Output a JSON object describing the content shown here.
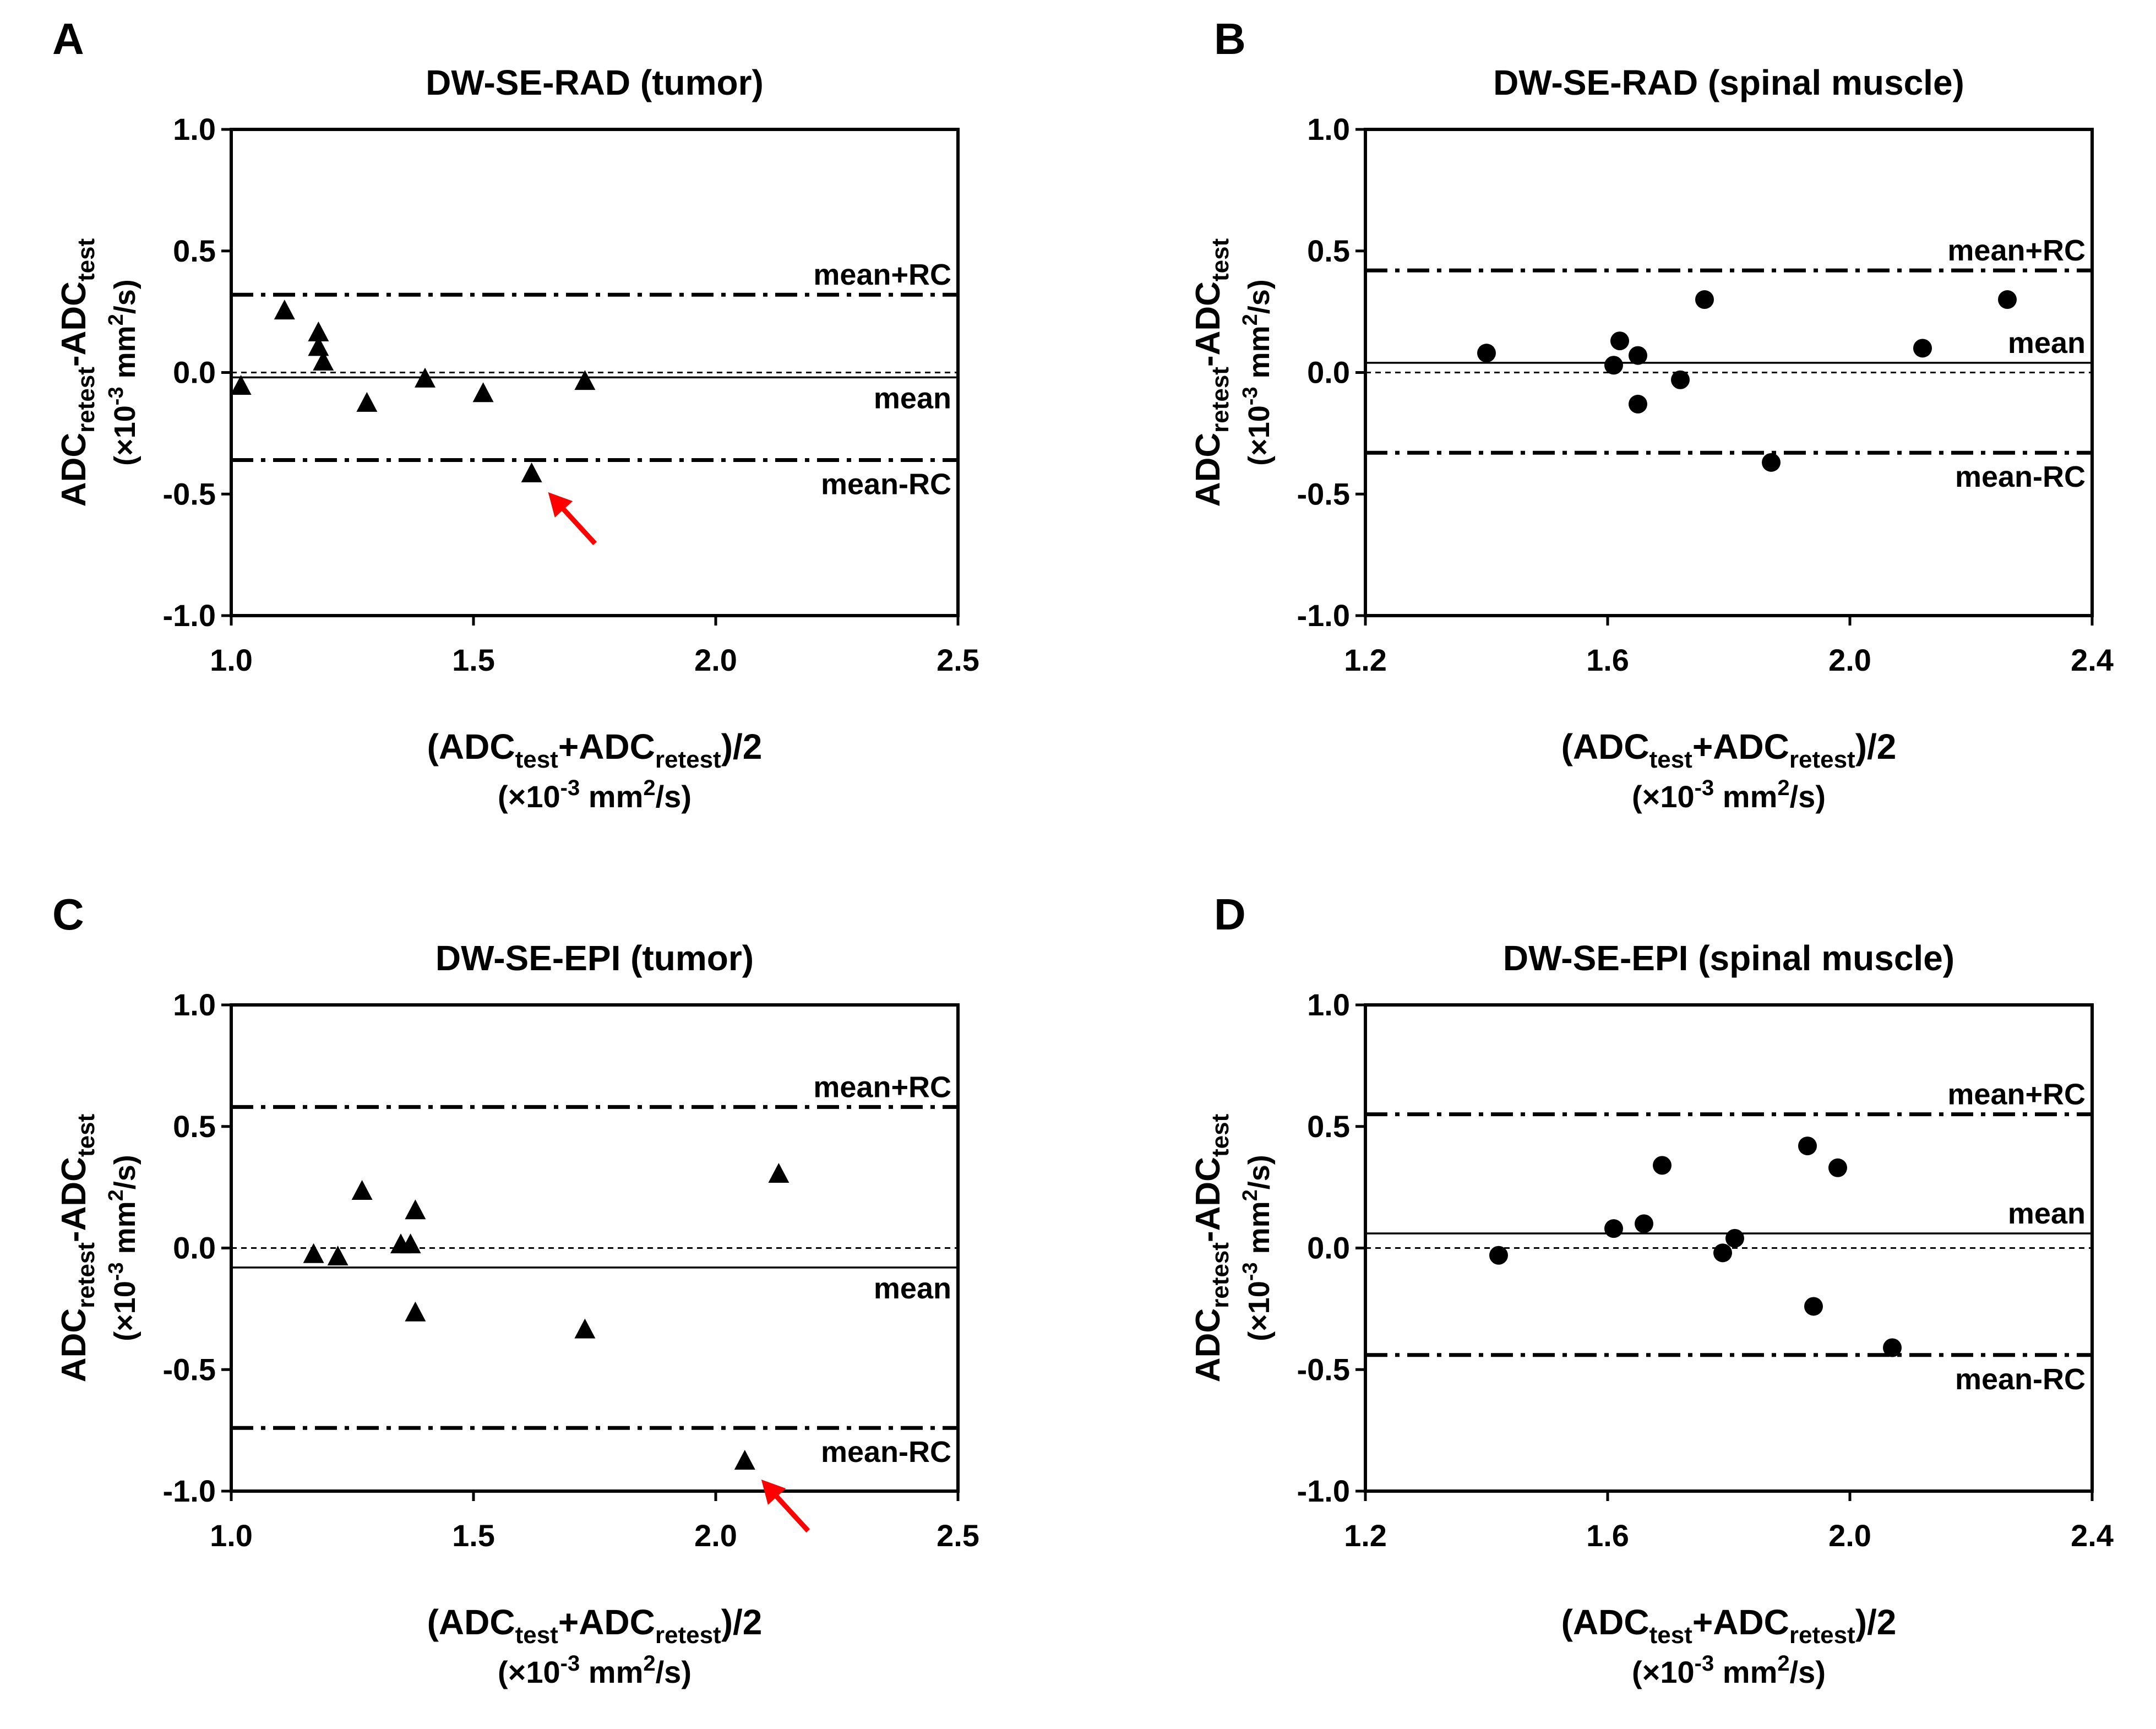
{
  "figure": {
    "background": "#ffffff",
    "text_color": "#000000",
    "arrow_color": "#ff0000"
  },
  "chart_data": [
    {
      "type": "scatter",
      "panel_letter": "A",
      "title": "DW-SE-RAD (tumor)",
      "marker": "triangle",
      "ylabel": {
        "base": "ADC",
        "sub1": "retest",
        "mid": "-ADC",
        "sub2": "test",
        "unit_pre": "(×10",
        "unit_exp": "-3",
        "unit_mid": " mm",
        "unit_exp2": "2",
        "unit_post": "/s)"
      },
      "xlabel": {
        "pre": "(ADC",
        "sub1": "test",
        "mid": "+ADC",
        "sub2": "retest",
        "post": ")/2",
        "unit_pre": "(×10",
        "unit_exp": "-3",
        "unit_mid": " mm",
        "unit_exp2": "2",
        "unit_post": "/s)"
      },
      "xlim": [
        1.0,
        2.5
      ],
      "ylim": [
        -1.0,
        1.0
      ],
      "xticks": [
        "1.0",
        "1.5",
        "2.0",
        "2.5"
      ],
      "yticks": [
        "-1.0",
        "-0.5",
        "0.0",
        "0.5",
        "1.0"
      ],
      "mean": -0.02,
      "upper": 0.32,
      "lower": -0.36,
      "mean_label": "mean",
      "upper_label": "mean+RC",
      "lower_label": "mean-RC",
      "points": [
        {
          "x": 1.02,
          "y": -0.06
        },
        {
          "x": 1.11,
          "y": 0.25
        },
        {
          "x": 1.18,
          "y": 0.16
        },
        {
          "x": 1.18,
          "y": 0.1
        },
        {
          "x": 1.19,
          "y": 0.04
        },
        {
          "x": 1.28,
          "y": -0.13
        },
        {
          "x": 1.4,
          "y": -0.03
        },
        {
          "x": 1.52,
          "y": -0.09
        },
        {
          "x": 1.62,
          "y": -0.42
        },
        {
          "x": 1.73,
          "y": -0.04
        }
      ],
      "arrow_point": {
        "x": 1.62,
        "y": -0.42
      }
    },
    {
      "type": "scatter",
      "panel_letter": "B",
      "title": "DW-SE-RAD (spinal muscle)",
      "marker": "circle",
      "ylabel": {
        "base": "ADC",
        "sub1": "retest",
        "mid": "-ADC",
        "sub2": "test",
        "unit_pre": "(×10",
        "unit_exp": "-3",
        "unit_mid": " mm",
        "unit_exp2": "2",
        "unit_post": "/s)"
      },
      "xlabel": {
        "pre": "(ADC",
        "sub1": "test",
        "mid": "+ADC",
        "sub2": "retest",
        "post": ")/2",
        "unit_pre": "(×10",
        "unit_exp": "-3",
        "unit_mid": " mm",
        "unit_exp2": "2",
        "unit_post": "/s)"
      },
      "xlim": [
        1.2,
        2.4
      ],
      "ylim": [
        -1.0,
        1.0
      ],
      "xticks": [
        "1.2",
        "1.6",
        "2.0",
        "2.4"
      ],
      "yticks": [
        "-1.0",
        "-0.5",
        "0.0",
        "0.5",
        "1.0"
      ],
      "mean": 0.04,
      "upper": 0.42,
      "lower": -0.33,
      "mean_label": "mean",
      "upper_label": "mean+RC",
      "lower_label": "mean-RC",
      "points": [
        {
          "x": 1.4,
          "y": 0.08
        },
        {
          "x": 1.61,
          "y": 0.03
        },
        {
          "x": 1.62,
          "y": 0.13
        },
        {
          "x": 1.65,
          "y": 0.07
        },
        {
          "x": 1.65,
          "y": -0.13
        },
        {
          "x": 1.72,
          "y": -0.03
        },
        {
          "x": 1.76,
          "y": 0.3
        },
        {
          "x": 1.87,
          "y": -0.37
        },
        {
          "x": 2.12,
          "y": 0.1
        },
        {
          "x": 2.26,
          "y": 0.3
        }
      ]
    },
    {
      "type": "scatter",
      "panel_letter": "C",
      "title": "DW-SE-EPI (tumor)",
      "marker": "triangle",
      "ylabel": {
        "base": "ADC",
        "sub1": "retest",
        "mid": "-ADC",
        "sub2": "test",
        "unit_pre": "(×10",
        "unit_exp": "-3",
        "unit_mid": " mm",
        "unit_exp2": "2",
        "unit_post": "/s)"
      },
      "xlabel": {
        "pre": "(ADC",
        "sub1": "test",
        "mid": "+ADC",
        "sub2": "retest",
        "post": ")/2",
        "unit_pre": "(×10",
        "unit_exp": "-3",
        "unit_mid": " mm",
        "unit_exp2": "2",
        "unit_post": "/s)"
      },
      "xlim": [
        1.0,
        2.5
      ],
      "ylim": [
        -1.0,
        1.0
      ],
      "xticks": [
        "1.0",
        "1.5",
        "2.0",
        "2.5"
      ],
      "yticks": [
        "-1.0",
        "-0.5",
        "0.0",
        "0.5",
        "1.0"
      ],
      "mean": -0.08,
      "upper": 0.58,
      "lower": -0.74,
      "mean_label": "mean",
      "upper_label": "mean+RC",
      "lower_label": "mean-RC",
      "points": [
        {
          "x": 1.17,
          "y": -0.03
        },
        {
          "x": 1.22,
          "y": -0.04
        },
        {
          "x": 1.27,
          "y": 0.23
        },
        {
          "x": 1.35,
          "y": 0.01
        },
        {
          "x": 1.37,
          "y": 0.01
        },
        {
          "x": 1.38,
          "y": 0.15
        },
        {
          "x": 1.38,
          "y": -0.27
        },
        {
          "x": 1.73,
          "y": -0.34
        },
        {
          "x": 2.06,
          "y": -0.88
        },
        {
          "x": 2.13,
          "y": 0.3
        }
      ],
      "arrow_point": {
        "x": 2.06,
        "y": -0.88
      }
    },
    {
      "type": "scatter",
      "panel_letter": "D",
      "title": "DW-SE-EPI (spinal muscle)",
      "marker": "circle",
      "ylabel": {
        "base": "ADC",
        "sub1": "retest",
        "mid": "-ADC",
        "sub2": "test",
        "unit_pre": "(×10",
        "unit_exp": "-3",
        "unit_mid": " mm",
        "unit_exp2": "2",
        "unit_post": "/s)"
      },
      "xlabel": {
        "pre": "(ADC",
        "sub1": "test",
        "mid": "+ADC",
        "sub2": "retest",
        "post": ")/2",
        "unit_pre": "(×10",
        "unit_exp": "-3",
        "unit_mid": " mm",
        "unit_exp2": "2",
        "unit_post": "/s)"
      },
      "xlim": [
        1.2,
        2.4
      ],
      "ylim": [
        -1.0,
        1.0
      ],
      "xticks": [
        "1.2",
        "1.6",
        "2.0",
        "2.4"
      ],
      "yticks": [
        "-1.0",
        "-0.5",
        "0.0",
        "0.5",
        "1.0"
      ],
      "mean": 0.06,
      "upper": 0.55,
      "lower": -0.44,
      "mean_label": "mean",
      "upper_label": "mean+RC",
      "lower_label": "mean-RC",
      "points": [
        {
          "x": 1.42,
          "y": -0.03
        },
        {
          "x": 1.61,
          "y": 0.08
        },
        {
          "x": 1.66,
          "y": 0.1
        },
        {
          "x": 1.69,
          "y": 0.34
        },
        {
          "x": 1.79,
          "y": -0.02
        },
        {
          "x": 1.81,
          "y": 0.04
        },
        {
          "x": 1.93,
          "y": 0.42
        },
        {
          "x": 1.94,
          "y": -0.24
        },
        {
          "x": 1.98,
          "y": 0.33
        },
        {
          "x": 2.07,
          "y": -0.41
        }
      ]
    }
  ]
}
